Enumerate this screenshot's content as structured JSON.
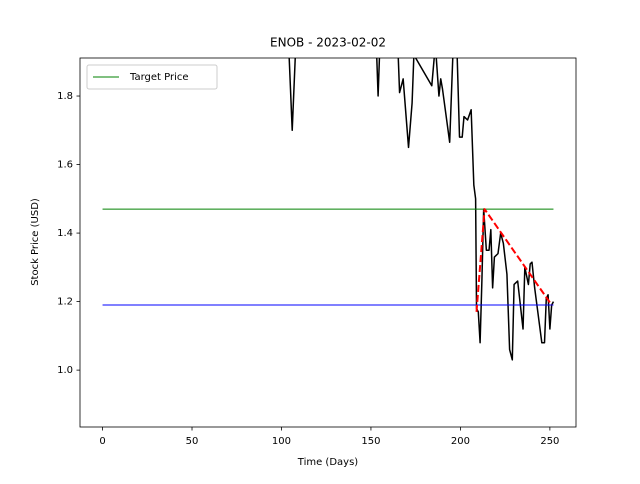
{
  "chart_data": {
    "type": "line",
    "title": "ENOB - 2023-02-02",
    "x_label": "Time (Days)",
    "y_label": "Stock Price (USD)",
    "xlim": [
      -12.6,
      264.6
    ],
    "ylim": [
      0.834,
      1.911
    ],
    "xticks": [
      0,
      50,
      100,
      150,
      200,
      250
    ],
    "yticks": [
      {
        "value": 1,
        "label": "1.0"
      },
      1.2,
      1.4,
      1.6,
      1.8
    ],
    "legend": "upper left",
    "series": [
      {
        "color": "#000000",
        "x": [
          104,
          106,
          108,
          153,
          154,
          155,
          165,
          166,
          168,
          171,
          173,
          174,
          184,
          186,
          188,
          189,
          190,
          194,
          196,
          198,
          199.5,
          201,
          202,
          204,
          206,
          207.5,
          208.5,
          209,
          210,
          211,
          212,
          213,
          214.5,
          216,
          217,
          218,
          219,
          221,
          222.5,
          224,
          226,
          227.5,
          229,
          230,
          232,
          233.5,
          235,
          236,
          238,
          239,
          240,
          241.5,
          243,
          245.5,
          247,
          248,
          249,
          250,
          251,
          252
        ],
        "values": [
          1.95,
          1.7,
          1.95,
          1.95,
          1.8,
          1.95,
          1.95,
          1.81,
          1.85,
          1.65,
          1.78,
          1.92,
          1.83,
          1.95,
          1.8,
          1.85,
          1.82,
          1.665,
          1.95,
          1.95,
          1.68,
          1.68,
          1.74,
          1.73,
          1.76,
          1.54,
          1.5,
          1.18,
          1.17,
          1.08,
          1.26,
          1.47,
          1.35,
          1.35,
          1.41,
          1.24,
          1.33,
          1.34,
          1.4,
          1.37,
          1.28,
          1.06,
          1.03,
          1.25,
          1.26,
          1.19,
          1.12,
          1.3,
          1.25,
          1.31,
          1.315,
          1.24,
          1.18,
          1.08,
          1.08,
          1.21,
          1.22,
          1.12,
          1.19,
          1.2
        ]
      },
      {
        "name": "Target Price",
        "color": "#008000",
        "x": [
          0,
          252
        ],
        "values": [
          1.47,
          1.47
        ]
      },
      {
        "color": "#0000ff",
        "x": [
          0,
          252
        ],
        "values": [
          1.19,
          1.19
        ]
      },
      {
        "color": "#ff0000",
        "dashed": true,
        "x": [
          209,
          213.5,
          251
        ],
        "values": [
          1.17,
          1.47,
          1.19
        ]
      }
    ]
  }
}
